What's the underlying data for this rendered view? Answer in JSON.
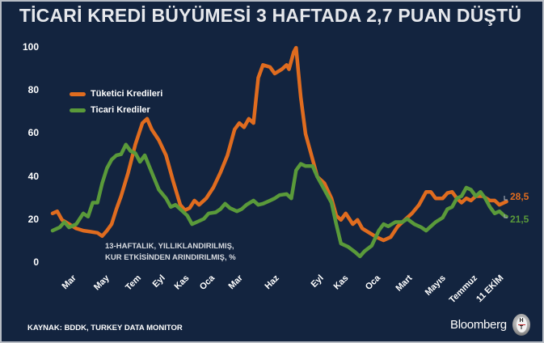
{
  "title": "TİCARİ KREDİ BÜYÜMESİ 3 HAFTADA 2,7 PUAN DÜŞTÜ",
  "legend": [
    {
      "label": "Tüketici Kredileri",
      "color": "#e06c1f"
    },
    {
      "label": "Ticari Krediler",
      "color": "#5a9a3a"
    }
  ],
  "note": {
    "line1": "13-HAFTALIK, YILLIKLANDIRILMIŞ,",
    "line2": "KUR ETKİSİNDEN ARINDIRILMIŞ, %"
  },
  "end_labels": {
    "consumer": "28,5",
    "commercial": "21,5"
  },
  "source": "KAYNAK: BDDK, TURKEY DATA MONITOR",
  "brand": "Bloomberg",
  "logo_text": {
    "top": "H",
    "bottom": "T"
  },
  "colors": {
    "background": "#13243f",
    "consumer": "#e06c1f",
    "commercial": "#5a9a3a",
    "text": "#ffffff"
  },
  "chart_data": {
    "type": "line",
    "title": "TİCARİ KREDİ BÜYÜMESİ 3 HAFTADA 2,7 PUAN DÜŞTÜ",
    "subtitle": "13-HAFTALIK, YILLIKLANDIRILMIŞ, KUR ETKİSİNDEN ARINDIRILMIŞ, %",
    "xlabel": "",
    "ylabel": "",
    "ylim": [
      0,
      100
    ],
    "yticks": [
      0,
      20,
      40,
      60,
      80,
      100
    ],
    "xtick_labels": [
      "Mar",
      "May",
      "Tem",
      "Eyl",
      "Kas",
      "Oca",
      "Mar",
      "Haz",
      "Eyl",
      "Kas",
      "Oca",
      "Mart",
      "Mayıs",
      "Temmuz",
      "11 EKİM"
    ],
    "xtick_positions": [
      0.05,
      0.14,
      0.225,
      0.3,
      0.37,
      0.445,
      0.525,
      0.645,
      0.75,
      0.81,
      0.9,
      0.975,
      1.06,
      1.14,
      1.2
    ],
    "grid": false,
    "legend_position": "upper left",
    "series": [
      {
        "name": "Tüketici Kredileri",
        "color": "#e06c1f",
        "last_value": 28.5,
        "points": [
          [
            0,
            23
          ],
          [
            0.01,
            24
          ],
          [
            0.02,
            20
          ],
          [
            0.035,
            18
          ],
          [
            0.05,
            16
          ],
          [
            0.065,
            15
          ],
          [
            0.08,
            14.5
          ],
          [
            0.095,
            14
          ],
          [
            0.105,
            12.5
          ],
          [
            0.115,
            15
          ],
          [
            0.125,
            18
          ],
          [
            0.135,
            25
          ],
          [
            0.145,
            31
          ],
          [
            0.16,
            42
          ],
          [
            0.175,
            55
          ],
          [
            0.19,
            65
          ],
          [
            0.2,
            67
          ],
          [
            0.21,
            62
          ],
          [
            0.225,
            57
          ],
          [
            0.24,
            50
          ],
          [
            0.255,
            38
          ],
          [
            0.27,
            27
          ],
          [
            0.28,
            24.5
          ],
          [
            0.29,
            25.5
          ],
          [
            0.3,
            29
          ],
          [
            0.31,
            27
          ],
          [
            0.325,
            30
          ],
          [
            0.34,
            35
          ],
          [
            0.355,
            42
          ],
          [
            0.37,
            50
          ],
          [
            0.385,
            62
          ],
          [
            0.395,
            65
          ],
          [
            0.405,
            63
          ],
          [
            0.415,
            67
          ],
          [
            0.425,
            65
          ],
          [
            0.435,
            86
          ],
          [
            0.445,
            92
          ],
          [
            0.46,
            91
          ],
          [
            0.47,
            88
          ],
          [
            0.485,
            90
          ],
          [
            0.495,
            92
          ],
          [
            0.5,
            90
          ],
          [
            0.51,
            98
          ],
          [
            0.515,
            100
          ],
          [
            0.525,
            77
          ],
          [
            0.535,
            60
          ],
          [
            0.55,
            48
          ],
          [
            0.56,
            40
          ],
          [
            0.575,
            37
          ],
          [
            0.59,
            30
          ],
          [
            0.6,
            22
          ],
          [
            0.61,
            20
          ],
          [
            0.62,
            23
          ],
          [
            0.635,
            18
          ],
          [
            0.645,
            20
          ],
          [
            0.655,
            16
          ],
          [
            0.67,
            14
          ],
          [
            0.685,
            12
          ],
          [
            0.7,
            10.5
          ],
          [
            0.715,
            12
          ],
          [
            0.73,
            17
          ],
          [
            0.745,
            20
          ],
          [
            0.76,
            23
          ],
          [
            0.775,
            27
          ],
          [
            0.79,
            33
          ],
          [
            0.8,
            33
          ],
          [
            0.81,
            30
          ],
          [
            0.825,
            30
          ],
          [
            0.835,
            32.5
          ],
          [
            0.845,
            33
          ],
          [
            0.855,
            30
          ],
          [
            0.865,
            28
          ],
          [
            0.875,
            30
          ],
          [
            0.885,
            29
          ],
          [
            0.895,
            31
          ],
          [
            0.91,
            31
          ],
          [
            0.925,
            29
          ],
          [
            0.935,
            29
          ],
          [
            0.945,
            27
          ],
          [
            0.955,
            28
          ],
          [
            0.96,
            28.5
          ]
        ]
      },
      {
        "name": "Ticari Krediler",
        "color": "#5a9a3a",
        "last_value": 21.5,
        "points": [
          [
            0,
            15
          ],
          [
            0.015,
            16.5
          ],
          [
            0.025,
            19
          ],
          [
            0.035,
            16.5
          ],
          [
            0.05,
            18
          ],
          [
            0.065,
            23
          ],
          [
            0.075,
            21.5
          ],
          [
            0.085,
            28
          ],
          [
            0.095,
            28
          ],
          [
            0.105,
            37
          ],
          [
            0.115,
            44
          ],
          [
            0.125,
            48
          ],
          [
            0.135,
            50
          ],
          [
            0.145,
            50.5
          ],
          [
            0.155,
            55
          ],
          [
            0.165,
            52
          ],
          [
            0.175,
            51
          ],
          [
            0.185,
            47
          ],
          [
            0.195,
            50
          ],
          [
            0.21,
            42
          ],
          [
            0.225,
            34
          ],
          [
            0.24,
            30
          ],
          [
            0.25,
            26
          ],
          [
            0.26,
            27
          ],
          [
            0.27,
            25
          ],
          [
            0.285,
            22
          ],
          [
            0.295,
            18
          ],
          [
            0.305,
            19
          ],
          [
            0.32,
            20.5
          ],
          [
            0.33,
            23
          ],
          [
            0.345,
            23.5
          ],
          [
            0.355,
            25
          ],
          [
            0.365,
            27.5
          ],
          [
            0.375,
            25.5
          ],
          [
            0.39,
            24
          ],
          [
            0.4,
            25
          ],
          [
            0.41,
            27
          ],
          [
            0.425,
            29
          ],
          [
            0.435,
            27
          ],
          [
            0.445,
            27.5
          ],
          [
            0.46,
            29
          ],
          [
            0.47,
            30
          ],
          [
            0.48,
            31.5
          ],
          [
            0.495,
            32
          ],
          [
            0.505,
            30
          ],
          [
            0.515,
            43
          ],
          [
            0.525,
            46
          ],
          [
            0.535,
            45
          ],
          [
            0.55,
            45
          ],
          [
            0.56,
            40
          ],
          [
            0.575,
            34
          ],
          [
            0.59,
            28
          ],
          [
            0.6,
            18
          ],
          [
            0.61,
            9
          ],
          [
            0.625,
            7.5
          ],
          [
            0.64,
            5
          ],
          [
            0.65,
            3
          ],
          [
            0.66,
            5.5
          ],
          [
            0.675,
            8
          ],
          [
            0.69,
            15
          ],
          [
            0.7,
            18
          ],
          [
            0.71,
            17
          ],
          [
            0.725,
            19
          ],
          [
            0.74,
            19
          ],
          [
            0.75,
            20.5
          ],
          [
            0.765,
            18
          ],
          [
            0.78,
            16.5
          ],
          [
            0.79,
            15
          ],
          [
            0.8,
            17
          ],
          [
            0.81,
            19
          ],
          [
            0.825,
            21
          ],
          [
            0.835,
            25
          ],
          [
            0.845,
            26
          ],
          [
            0.855,
            30
          ],
          [
            0.865,
            31
          ],
          [
            0.875,
            35
          ],
          [
            0.885,
            34
          ],
          [
            0.895,
            31
          ],
          [
            0.905,
            33
          ],
          [
            0.915,
            30
          ],
          [
            0.925,
            26
          ],
          [
            0.935,
            23
          ],
          [
            0.945,
            24
          ],
          [
            0.955,
            22
          ],
          [
            0.96,
            21.5
          ]
        ]
      }
    ]
  }
}
